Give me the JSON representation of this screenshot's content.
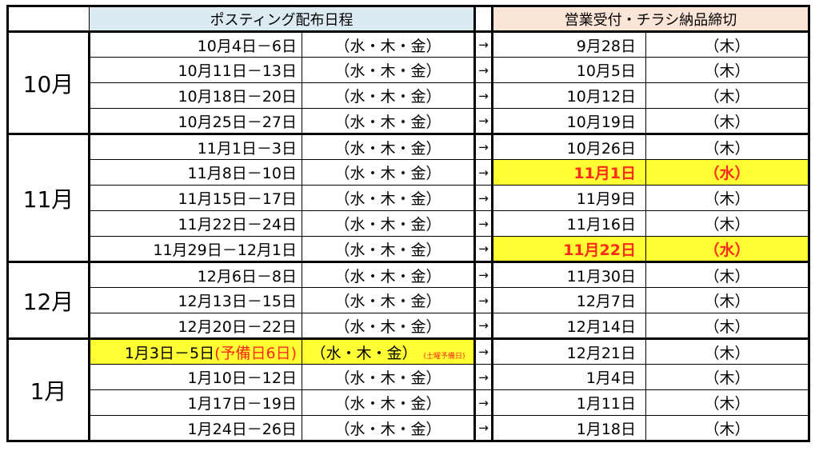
{
  "header": {
    "posting": "ポスティング配布日程",
    "deadline": "営業受付・チラシ納品締切"
  },
  "arrow": "→",
  "groups": [
    {
      "month": "10月",
      "rows": [
        {
          "range": "10月4日－6日",
          "days": "（水・木・金）",
          "deadline": "9月28日",
          "deadline_day": "（木）"
        },
        {
          "range": "10月11日－13日",
          "days": "（水・木・金）",
          "deadline": "10月5日",
          "deadline_day": "（木）"
        },
        {
          "range": "10月18日－20日",
          "days": "（水・木・金）",
          "deadline": "10月12日",
          "deadline_day": "（木）"
        },
        {
          "range": "10月25日－27日",
          "days": "（水・木・金）",
          "deadline": "10月19日",
          "deadline_day": "（木）"
        }
      ]
    },
    {
      "month": "11月",
      "rows": [
        {
          "range": "11月1日－3日",
          "days": "（水・木・金）",
          "deadline": "10月26日",
          "deadline_day": "（木）"
        },
        {
          "range": "11月8日－10日",
          "days": "（水・木・金）",
          "deadline": "11月1日",
          "deadline_day": "（水）",
          "highlight": true
        },
        {
          "range": "11月15日－17日",
          "days": "（水・木・金）",
          "deadline": "11月9日",
          "deadline_day": "（木）"
        },
        {
          "range": "11月22日－24日",
          "days": "（水・木・金）",
          "deadline": "11月16日",
          "deadline_day": "（木）"
        },
        {
          "range": "11月29日－12月1日",
          "days": "（水・木・金）",
          "deadline": "11月22日",
          "deadline_day": "（水）",
          "highlight": true
        }
      ]
    },
    {
      "month": "12月",
      "rows": [
        {
          "range": "12月6日－8日",
          "days": "（水・木・金）",
          "deadline": "11月30日",
          "deadline_day": "（木）"
        },
        {
          "range": "12月13日－15日",
          "days": "（水・木・金）",
          "deadline": "12月7日",
          "deadline_day": "（木）"
        },
        {
          "range": "12月20日－22日",
          "days": "（水・木・金）",
          "deadline": "12月14日",
          "deadline_day": "（木）"
        }
      ]
    },
    {
      "month": "1月",
      "rows": [
        {
          "range": "1月3日－5日",
          "range_note": "(予備日6日)",
          "days": "（水・木・金）",
          "days_note": "(土曜予備日)",
          "deadline": "12月21日",
          "deadline_day": "（木）",
          "post_highlight": true
        },
        {
          "range": "1月10日－12日",
          "days": "（水・木・金）",
          "deadline": "1月4日",
          "deadline_day": "（木）"
        },
        {
          "range": "1月17日－19日",
          "days": "（水・木・金）",
          "deadline": "1月11日",
          "deadline_day": "（木）"
        },
        {
          "range": "1月24日－26日",
          "days": "（水・木・金）",
          "deadline": "1月18日",
          "deadline_day": "（木）"
        }
      ]
    }
  ],
  "colors": {
    "posting_header_bg": "#dcebf2",
    "deadline_header_bg": "#fbe5d6",
    "highlight_bg": "#ffff33",
    "highlight_text": "#ff2a1a"
  }
}
